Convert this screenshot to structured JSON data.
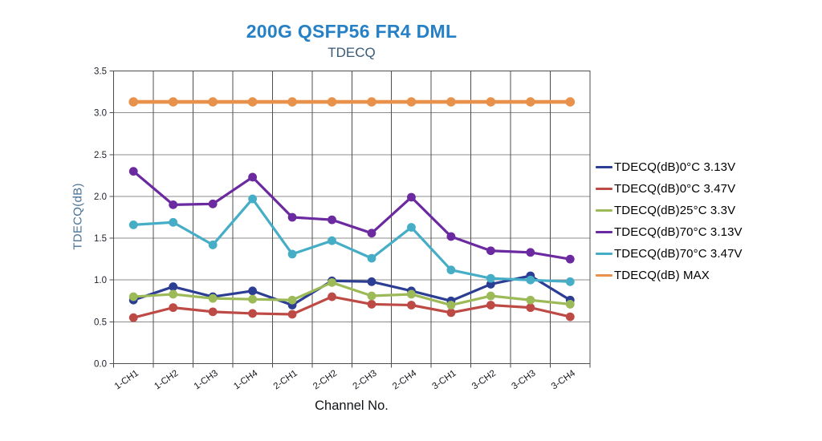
{
  "header": {
    "title": "200G QSFP56 FR4 DML",
    "subtitle": "TDECQ"
  },
  "chart_data": {
    "type": "line",
    "title": "200G QSFP56 FR4 DML",
    "subtitle": "TDECQ",
    "xlabel": "Channel No.",
    "ylabel": "TDECQ(dB)",
    "ylim": [
      0,
      3.5
    ],
    "ytick_step": 0.5,
    "grid": true,
    "legend_position": "right",
    "categories": [
      "1-CH1",
      "1-CH2",
      "1-CH3",
      "1-CH4",
      "2-CH1",
      "2-CH2",
      "2-CH3",
      "2-CH4",
      "3-CH1",
      "3-CH2",
      "3-CH3",
      "3-CH4"
    ],
    "series": [
      {
        "name": "TDECQ(dB)0°C 3.13V",
        "color": "#2c3e94",
        "values": [
          0.76,
          0.92,
          0.8,
          0.87,
          0.7,
          0.99,
          0.98,
          0.87,
          0.75,
          0.95,
          1.05,
          0.76
        ]
      },
      {
        "name": "TDECQ(dB)0°C 3.47V",
        "color": "#bd4a45",
        "values": [
          0.55,
          0.67,
          0.62,
          0.6,
          0.59,
          0.8,
          0.71,
          0.7,
          0.61,
          0.7,
          0.67,
          0.56
        ]
      },
      {
        "name": "TDECQ(dB)25°C 3.3V",
        "color": "#9cba57",
        "values": [
          0.8,
          0.83,
          0.78,
          0.77,
          0.76,
          0.97,
          0.81,
          0.83,
          0.7,
          0.81,
          0.76,
          0.71
        ]
      },
      {
        "name": "TDECQ(dB)70°C 3.13V",
        "color": "#6b2aa0",
        "values": [
          2.3,
          1.9,
          1.91,
          2.23,
          1.75,
          1.72,
          1.56,
          1.99,
          1.52,
          1.35,
          1.33,
          1.25
        ]
      },
      {
        "name": "TDECQ(dB)70°C 3.47V",
        "color": "#46adc7",
        "values": [
          1.66,
          1.69,
          1.42,
          1.97,
          1.31,
          1.47,
          1.26,
          1.63,
          1.12,
          1.02,
          1.0,
          0.98
        ]
      },
      {
        "name": "TDECQ(dB) MAX",
        "color": "#e8914a",
        "values": [
          3.13,
          3.13,
          3.13,
          3.13,
          3.13,
          3.13,
          3.13,
          3.13,
          3.13,
          3.13,
          3.13,
          3.13
        ]
      }
    ]
  },
  "colors": {
    "title": "#2580c6",
    "subtitle": "#3b5a77",
    "ylabel": "#4a7296",
    "tick_label": "#20242e",
    "grid_horizontal": "#8c8c8c",
    "grid_vertical": "#4f4f4f",
    "plot_border": "#4f4f4f",
    "background": "#ffffff"
  }
}
